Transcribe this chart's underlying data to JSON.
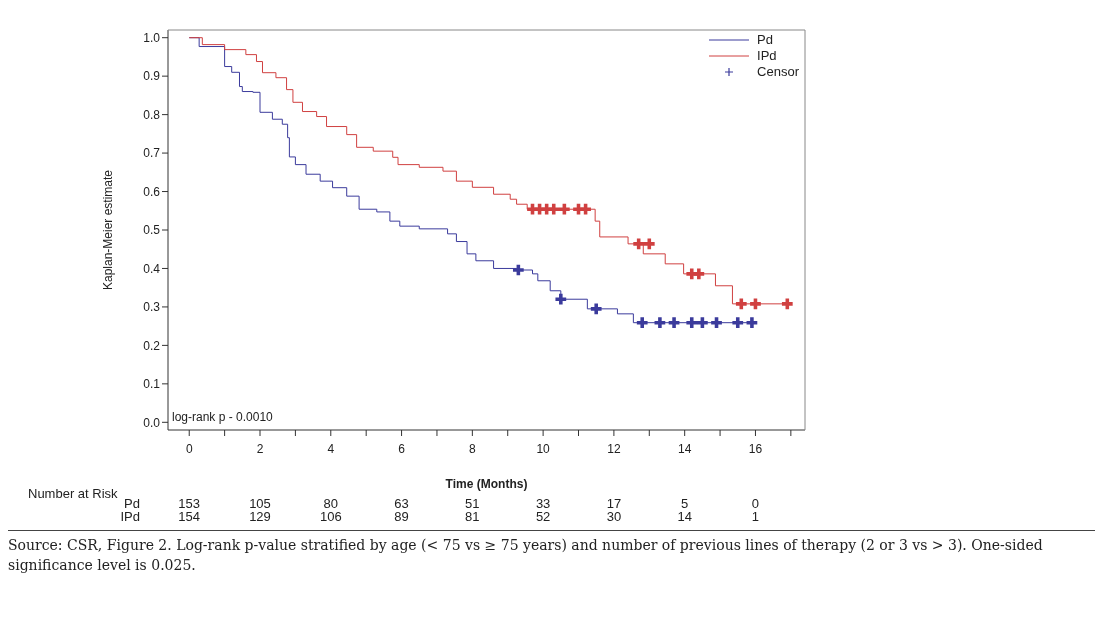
{
  "chart_data": {
    "type": "step",
    "ylabel": "Kaplan-Meier estimate",
    "xlabel": "Time (Months)",
    "xlim": [
      -0.6,
      17.4
    ],
    "ylim": [
      -0.02,
      1.02
    ],
    "xticks": [
      0,
      {
        "value": 1,
        "label": null
      },
      2,
      {
        "value": 3,
        "label": null
      },
      4,
      {
        "value": 5,
        "label": null
      },
      6,
      {
        "value": 7,
        "label": null
      },
      8,
      {
        "value": 9,
        "label": null
      },
      10,
      {
        "value": 11,
        "label": null
      },
      12,
      {
        "value": 13,
        "label": null
      },
      14,
      {
        "value": 15,
        "label": null
      },
      16,
      {
        "value": 17,
        "label": null
      }
    ],
    "yticks": [
      {
        "value": 0,
        "label": "0.0"
      },
      0.1,
      0.2,
      0.3,
      0.4,
      0.5,
      0.6,
      0.7,
      0.8,
      0.9,
      {
        "value": 1,
        "label": "1.0"
      }
    ],
    "legend": "top right",
    "grid": false,
    "series": [
      {
        "name": "Pd",
        "color": "#3b3b9c",
        "x": [
          0,
          0.28,
          1.0,
          1.2,
          1.42,
          1.5,
          1.8,
          2.0,
          2.35,
          2.63,
          2.78,
          2.83,
          3.0,
          3.3,
          3.7,
          4.05,
          4.45,
          4.8,
          5.3,
          5.67,
          5.95,
          6.5,
          7.3,
          7.55,
          7.85,
          8.1,
          8.6,
          9.25,
          9.7,
          9.85,
          10.2,
          10.5,
          11.25,
          12.1,
          12.55,
          15.9
        ],
        "values": [
          1.0,
          0.977,
          0.925,
          0.91,
          0.873,
          0.86,
          0.858,
          0.806,
          0.788,
          0.775,
          0.74,
          0.69,
          0.67,
          0.645,
          0.627,
          0.61,
          0.588,
          0.554,
          0.547,
          0.523,
          0.51,
          0.503,
          0.49,
          0.47,
          0.438,
          0.42,
          0.4,
          0.396,
          0.386,
          0.368,
          0.342,
          0.32,
          0.295,
          0.282,
          0.259,
          0.259
        ]
      },
      {
        "name": "IPd",
        "color": "#d04040",
        "x": [
          0,
          0.37,
          1.0,
          1.6,
          1.9,
          2.07,
          2.45,
          2.75,
          2.93,
          3.2,
          3.6,
          3.88,
          4.45,
          4.73,
          5.2,
          5.75,
          5.9,
          6.5,
          7.17,
          7.55,
          8.0,
          8.6,
          9.07,
          9.25,
          9.55,
          11.47,
          11.6,
          12.4,
          12.83,
          13.45,
          13.97,
          14.87,
          15.35,
          17.0
        ],
        "values": [
          1.0,
          0.982,
          0.969,
          0.956,
          0.938,
          0.909,
          0.896,
          0.865,
          0.832,
          0.808,
          0.795,
          0.769,
          0.748,
          0.715,
          0.705,
          0.689,
          0.67,
          0.663,
          0.653,
          0.627,
          0.611,
          0.593,
          0.58,
          0.567,
          0.554,
          0.523,
          0.482,
          0.464,
          0.438,
          0.412,
          0.386,
          0.355,
          0.308,
          0.308
        ]
      },
      {
        "name": "Censor",
        "type": "scatter",
        "marker": "cross",
        "color": "#3b3b9c",
        "x": [
          9.3,
          10.5,
          11.5,
          12.8,
          13.3,
          13.7,
          14.2,
          14.5,
          14.9,
          15.5,
          15.9,
          9.7,
          9.9,
          10.1,
          10.3,
          10.6,
          11.0,
          11.2,
          12.7,
          13.0,
          14.2,
          14.4,
          15.6,
          16.0,
          16.9
        ],
        "values": [
          0.396,
          0.32,
          0.295,
          0.259,
          0.259,
          0.259,
          0.259,
          0.259,
          0.259,
          0.259,
          0.259,
          0.554,
          0.554,
          0.554,
          0.554,
          0.554,
          0.554,
          0.554,
          0.464,
          0.464,
          0.386,
          0.386,
          0.308,
          0.308,
          0.308
        ],
        "colors": [
          "#3b3b9c",
          "#3b3b9c",
          "#3b3b9c",
          "#3b3b9c",
          "#3b3b9c",
          "#3b3b9c",
          "#3b3b9c",
          "#3b3b9c",
          "#3b3b9c",
          "#3b3b9c",
          "#3b3b9c",
          "#d04040",
          "#d04040",
          "#d04040",
          "#d04040",
          "#d04040",
          "#d04040",
          "#d04040",
          "#d04040",
          "#d04040",
          "#d04040",
          "#d04040",
          "#d04040",
          "#d04040",
          "#d04040"
        ]
      }
    ],
    "annotations": [
      "log-rank p - 0.0010",
      "Number at Risk",
      "Pd",
      "153",
      "105",
      "80",
      "63",
      "51",
      "33",
      "17",
      "5",
      "0",
      "IPd",
      "154",
      "129",
      "106",
      "89",
      "81",
      "52",
      "30",
      "14",
      "1",
      "Source: CSR, Figure 2. Log-rank p-value stratified by age (< 75 vs ≥ 75 years) and number of previous lines of therapy (2 or 3 vs > 3). One-sided significance level is 0.025."
    ]
  }
}
